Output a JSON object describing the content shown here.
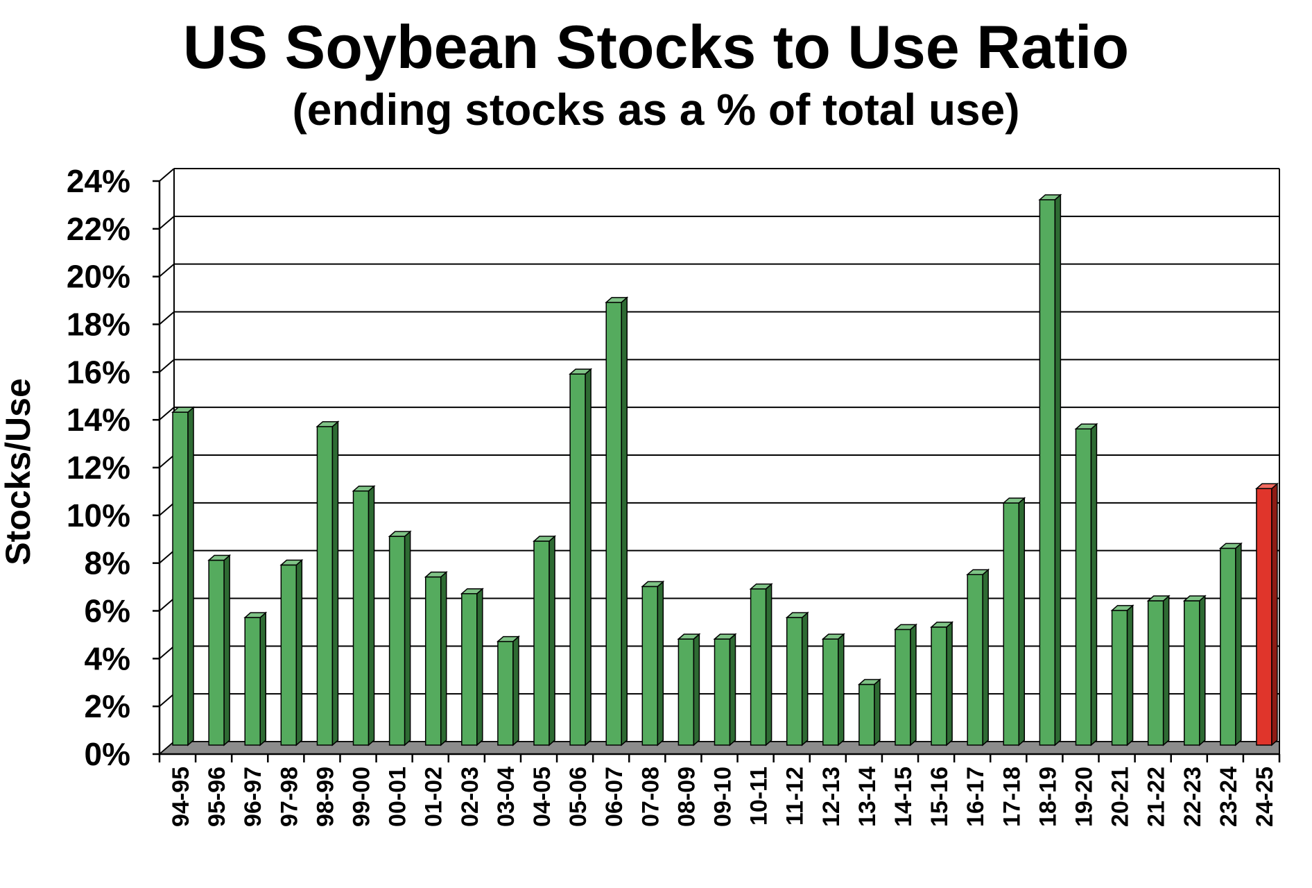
{
  "chart_data": {
    "type": "bar",
    "title": "US Soybean Stocks to Use Ratio",
    "subtitle": "(ending stocks as a % of total use)",
    "xlabel": "",
    "ylabel": "Stocks/Use",
    "ylim": [
      0,
      24
    ],
    "y_ticks": [
      0,
      2,
      4,
      6,
      8,
      10,
      12,
      14,
      16,
      18,
      20,
      22,
      24
    ],
    "y_tick_labels": [
      "0%",
      "2%",
      "4%",
      "6%",
      "8%",
      "10%",
      "12%",
      "14%",
      "16%",
      "18%",
      "20%",
      "22%",
      "24%"
    ],
    "grid": true,
    "categories": [
      "94-95",
      "95-96",
      "96-97",
      "97-98",
      "98-99",
      "99-00",
      "00-01",
      "01-02",
      "02-03",
      "03-04",
      "04-05",
      "05-06",
      "06-07",
      "07-08",
      "08-09",
      "09-10",
      "10-11",
      "11-12",
      "12-13",
      "13-14",
      "14-15",
      "15-16",
      "16-17",
      "17-18",
      "18-19",
      "19-20",
      "20-21",
      "21-22",
      "22-23",
      "23-24",
      "24-25"
    ],
    "values": [
      14.0,
      7.8,
      5.4,
      7.6,
      13.4,
      10.7,
      8.8,
      7.1,
      6.4,
      4.4,
      8.6,
      15.6,
      18.6,
      6.7,
      4.5,
      4.5,
      6.6,
      5.4,
      4.5,
      2.6,
      4.9,
      5.0,
      7.2,
      10.2,
      22.9,
      13.3,
      5.7,
      6.1,
      6.1,
      8.3,
      10.8
    ],
    "colors": {
      "bar": "#55ab5e",
      "bar_side": "#2e6b33",
      "bar_top": "#7fc386",
      "highlight": "#e0352b",
      "highlight_side": "#8f1b14",
      "highlight_top": "#f06a60",
      "floor": "#8c8c8c",
      "grid": "#000000"
    },
    "highlight_category": "24-25"
  }
}
